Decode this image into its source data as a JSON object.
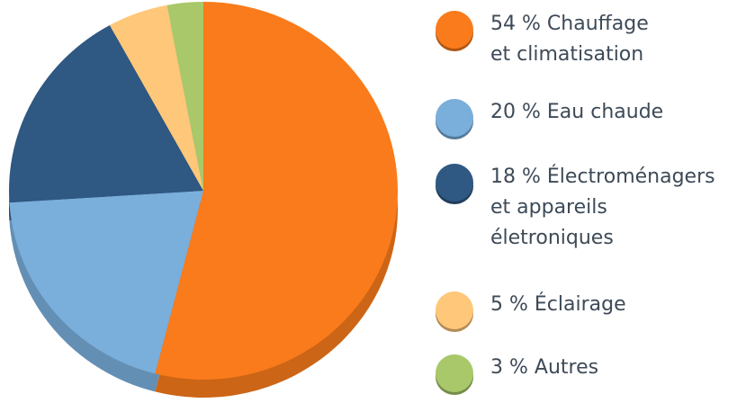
{
  "chart_data": {
    "type": "pie",
    "categories": [
      "Chauffage\net climatisation",
      "Eau chaude",
      "Électroménagers\net appareils\néletroniques",
      "Éclairage",
      "Autres"
    ],
    "values": [
      54,
      20,
      18,
      5,
      3
    ],
    "value_labels": [
      "54 %",
      "20 %",
      "18 %",
      "5 %",
      "3 %"
    ],
    "colors": [
      "#f97b1b",
      "#7aaedb",
      "#2f5882",
      "#fec77a",
      "#a8c86a"
    ],
    "legend": "right"
  }
}
